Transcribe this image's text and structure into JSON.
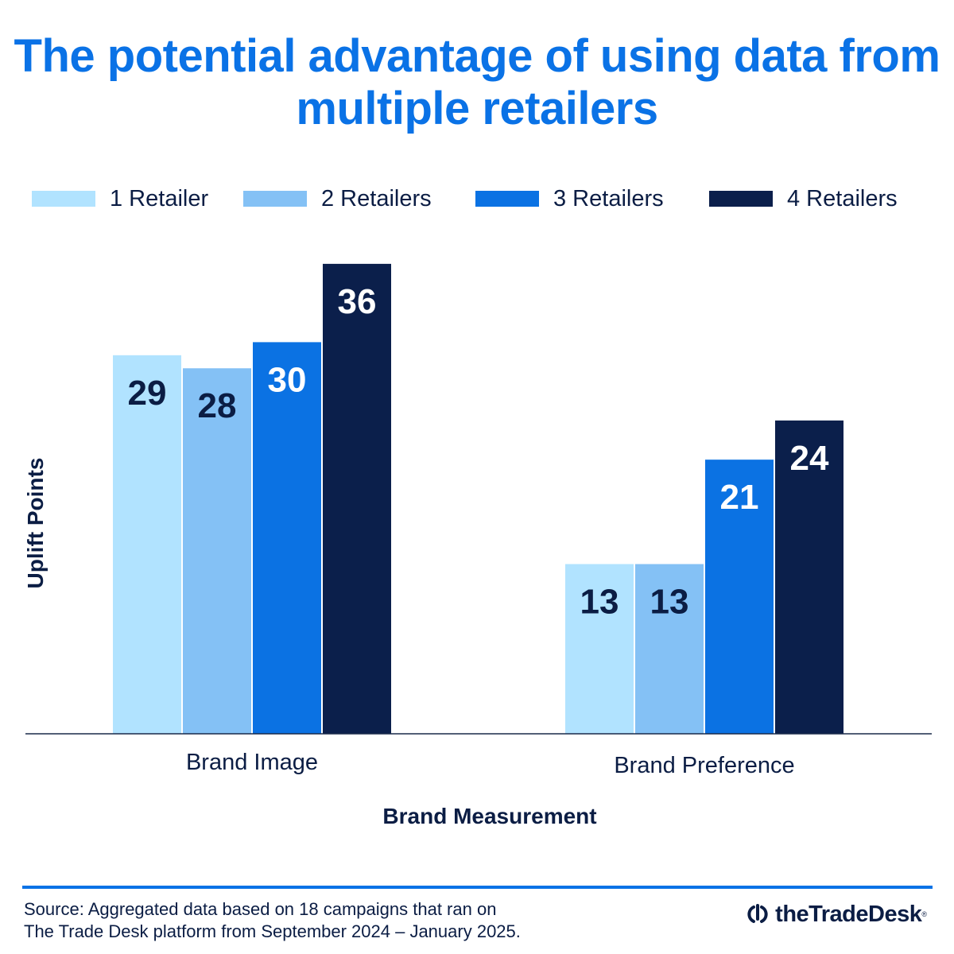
{
  "chart_data": {
    "type": "bar",
    "title": "The potential advantage of using data from multiple retailers",
    "categories": [
      "Brand Image",
      "Brand Preference"
    ],
    "series": [
      {
        "name": "1 Retailer",
        "color": "#b1e3ff",
        "label_color": "#0b1d44",
        "values": [
          29,
          13
        ]
      },
      {
        "name": "2 Retailers",
        "color": "#84c1f5",
        "label_color": "#0b1d44",
        "values": [
          28,
          13
        ]
      },
      {
        "name": "3 Retailers",
        "color": "#0b72e3",
        "label_color": "#ffffff",
        "values": [
          30,
          21
        ]
      },
      {
        "name": "4 Retailers",
        "color": "#0b1f4b",
        "label_color": "#ffffff",
        "values": [
          36,
          24
        ]
      }
    ],
    "xlabel": "Brand Measurement",
    "ylabel": "Uplift Points",
    "ylim": [
      0,
      36
    ],
    "grid": false,
    "legend_position": "top"
  },
  "footer": {
    "source_line1": "Source: Aggregated data based on 18 campaigns that ran on",
    "source_line2": "The Trade Desk platform from September 2024 – January 2025.",
    "logo_text": "theTradeDesk",
    "logo_reg": "®"
  },
  "colors": {
    "title": "#0a72e6",
    "text": "#0b1d44",
    "rule": "#0a72e6"
  }
}
